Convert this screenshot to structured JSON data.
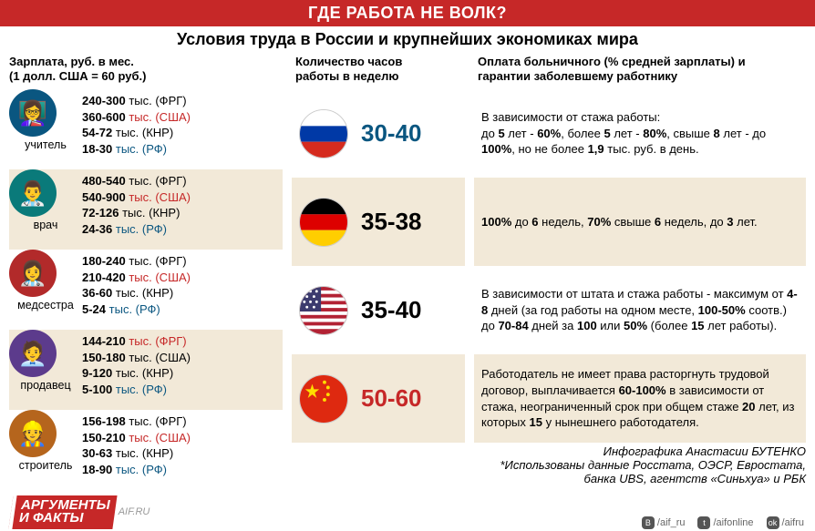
{
  "title_bar": "ГДЕ РАБОТА НЕ ВОЛК?",
  "subtitle": "Условия труда в России и крупнейших экономиках мира",
  "columns": {
    "salary_header_l1": "Зарплата, руб. в мес.",
    "salary_header_l2": "(1 долл. США = 60 руб.)",
    "hours_header_l1": "Количество часов",
    "hours_header_l2": "работы в неделю",
    "sick_header_l1": "Оплата больничного (% средней зарплаты) и",
    "sick_header_l2": "гарантии заболевшему работнику"
  },
  "colors": {
    "frg": "#000000",
    "usa": "#c62828",
    "knr": "#000000",
    "rf": "#0a5680",
    "alt_bg": "#f2e9d8",
    "russia_hours": "#0a5680",
    "main_red": "#c62828"
  },
  "professions": [
    {
      "key": "учитель",
      "avatar_bg": "#0a5680",
      "emoji": "👩‍🏫",
      "salary": [
        {
          "bold": "240-300",
          "suffix": " тыс. (ФРГ)",
          "color": "#000"
        },
        {
          "bold": "360-600",
          "suffix": " тыс. (США)",
          "color": "#c62828"
        },
        {
          "bold": "54-72",
          "suffix": " тыс. (КНР)",
          "color": "#000"
        },
        {
          "bold": "18-30",
          "suffix": " тыс. (РФ)",
          "color": "#0a5680"
        }
      ]
    },
    {
      "key": "врач",
      "avatar_bg": "#0a7a7a",
      "emoji": "👨‍⚕️",
      "salary": [
        {
          "bold": "480-540",
          "suffix": " тыс. (ФРГ)",
          "color": "#000"
        },
        {
          "bold": "540-900",
          "suffix": " тыс. (США)",
          "color": "#c62828"
        },
        {
          "bold": "72-126",
          "suffix": " тыс. (КНР)",
          "color": "#000"
        },
        {
          "bold": "24-36",
          "suffix": " тыс. (РФ)",
          "color": "#0a5680"
        }
      ]
    },
    {
      "key": "медсестра",
      "avatar_bg": "#b22a2a",
      "emoji": "👩‍⚕️",
      "salary": [
        {
          "bold": "180-240",
          "suffix": " тыс. (ФРГ)",
          "color": "#000"
        },
        {
          "bold": "210-420",
          "suffix": " тыс. (США)",
          "color": "#c62828"
        },
        {
          "bold": "36-60",
          "suffix": " тыс. (КНР)",
          "color": "#000"
        },
        {
          "bold": "5-24",
          "suffix": " тыс. (РФ)",
          "color": "#0a5680"
        }
      ]
    },
    {
      "key": "продавец",
      "avatar_bg": "#5c3b8c",
      "emoji": "🧑‍💼",
      "salary": [
        {
          "bold": "144-210",
          "suffix": " тыс. (ФРГ)",
          "color": "#c62828"
        },
        {
          "bold": "150-180",
          "suffix": " тыс. (США)",
          "color": "#000"
        },
        {
          "bold": "9-120",
          "suffix": " тыс. (КНР)",
          "color": "#000"
        },
        {
          "bold": "5-100",
          "suffix": " тыс. (РФ)",
          "color": "#0a5680"
        }
      ]
    },
    {
      "key": "строитель",
      "avatar_bg": "#b5651d",
      "emoji": "👷",
      "salary": [
        {
          "bold": "156-198",
          "suffix": " тыс. (ФРГ)",
          "color": "#000"
        },
        {
          "bold": "150-210",
          "suffix": " тыс. (США)",
          "color": "#c62828"
        },
        {
          "bold": "30-63",
          "suffix": " тыс. (КНР)",
          "color": "#000"
        },
        {
          "bold": "18-90",
          "suffix": " тыс. (РФ)",
          "color": "#0a5680"
        }
      ]
    }
  ],
  "hours": [
    {
      "country": "russia",
      "value": "30-40",
      "value_color": "#0a5680"
    },
    {
      "country": "germany",
      "value": "35-38",
      "value_color": "#000"
    },
    {
      "country": "usa",
      "value": "35-40",
      "value_color": "#000"
    },
    {
      "country": "china",
      "value": "50-60",
      "value_color": "#c62828"
    }
  ],
  "sick": [
    {
      "html": "В зависимости от стажа работы:<br>до <b>5</b> лет - <b>60%</b>, более <b>5</b> лет - <b>80%</b>, свыше <b>8</b> лет - до <b>100%</b>, но не более <b>1,9</b> тыс. руб. в день."
    },
    {
      "html": "<b>100%</b> до <b>6</b> недель, <b>70%</b> свыше <b>6</b> недель, до <b>3</b> лет."
    },
    {
      "html": "В зависимости от штата и стажа работы - максимум от <b>4-8</b> дней (за год работы на одном месте, <b>100-50%</b> соотв.) до <b>70-84</b> дней за <b>100</b> или <b>50%</b> (более <b>15</b> лет работы)."
    },
    {
      "html": "Работодатель не имеет права расторгнуть трудовой договор, выплачивается <b>60-100%</b> в зависимости от стажа, неограниченный срок при общем стаже <b>20</b> лет, из которых <b>15</b> у нынешнего работодателя."
    }
  ],
  "credits": {
    "author": "Инфографика Анастасии БУТЕНКО",
    "sources": "*Использованы данные Росстата, ОЭСР, Евростата, банка UBS, агентств «Синьхуа» и РБК"
  },
  "brand": {
    "l1": "АРГУМЕНТЫ",
    "l2": "И ФАКТЫ",
    "site": "AIF.RU"
  },
  "socials": [
    {
      "icon": "vk",
      "label": "/aif_ru"
    },
    {
      "icon": "tw",
      "label": "/aifonline"
    },
    {
      "icon": "ok",
      "label": "/aifru"
    }
  ]
}
